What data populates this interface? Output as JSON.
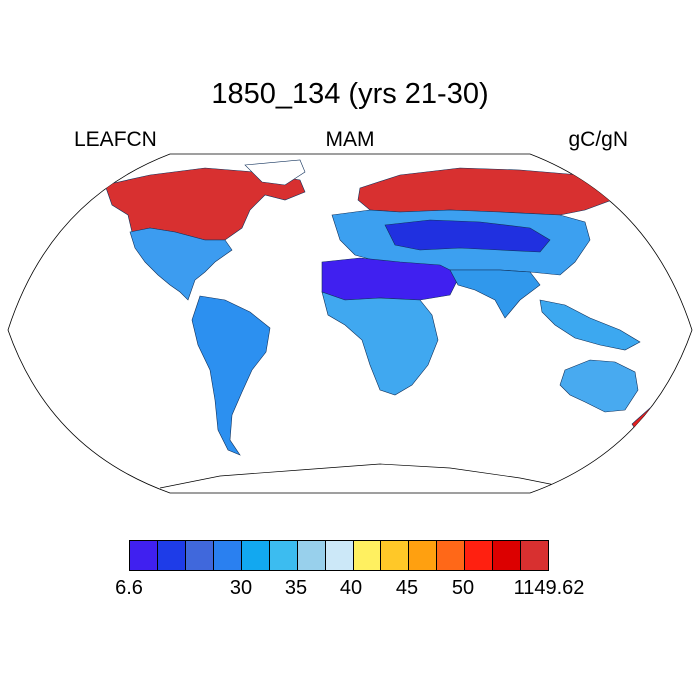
{
  "title": "1850_134 (yrs 21-30)",
  "labels": {
    "variable": "LEAFCN",
    "season": "MAM",
    "units": "gC/gN"
  },
  "projection": "Robinson",
  "colorbar": {
    "colors": [
      "#4020f0",
      "#1e3ce8",
      "#4068dc",
      "#2a80f0",
      "#12a8f0",
      "#3cbcf0",
      "#98d0ec",
      "#cce8f8",
      "#fff060",
      "#ffc828",
      "#ffa010",
      "#ff6818",
      "#ff2010",
      "#dc0000",
      "#d83030"
    ],
    "tick_labels": [
      "6.6",
      "30",
      "35",
      "40",
      "45",
      "50",
      "1149.62"
    ]
  },
  "regions": [
    {
      "name": "north-america-north",
      "color": "#d83030"
    },
    {
      "name": "north-america-south",
      "color": "#3c9cf0"
    },
    {
      "name": "south-america",
      "color": "#2c90f0"
    },
    {
      "name": "europe-asia-north",
      "color": "#d83030"
    },
    {
      "name": "europe-asia-band",
      "color": "#3ca0f0"
    },
    {
      "name": "central-asia",
      "color": "#2030e0"
    },
    {
      "name": "sahara",
      "color": "#4020f0"
    },
    {
      "name": "africa",
      "color": "#40a8f0"
    },
    {
      "name": "south-asia",
      "color": "#3098ec"
    },
    {
      "name": "southeast-asia",
      "color": "#3ca8f0"
    },
    {
      "name": "australia",
      "color": "#48aaf0"
    },
    {
      "name": "new-zealand",
      "color": "#e02020"
    }
  ]
}
